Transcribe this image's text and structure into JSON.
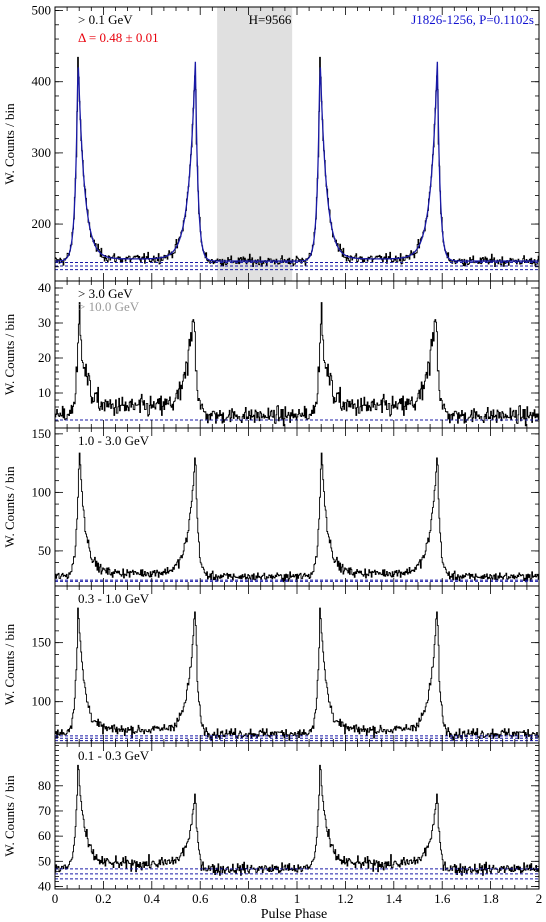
{
  "chart_data": {
    "type": "histogram",
    "x_axis": {
      "label": "Pulse Phase",
      "range": [
        0,
        2
      ],
      "ticks": [
        "0",
        "0.2",
        "0.4",
        "0.6",
        "0.8",
        "1",
        "1.2",
        "1.4",
        "1.6",
        "1.8",
        "2"
      ]
    },
    "colors": {
      "data": "#000000",
      "fit": "#1a1aa6",
      "background_line": "#1a1aa6",
      "offpulse_band": "#e0e0e0",
      "delta_text": "#e8000b",
      "pulsar_text": "#1010d0",
      "secondary_energy_text": "#999999"
    },
    "panels": [
      {
        "energy_label": "> 0.1 GeV",
        "extra_label": "Δ = 0.48 ± 0.01",
        "h_label": "H=9566",
        "pulsar_label": "J1826-1256, P=0.1102s",
        "ylabel": "W. Counts / bin",
        "ylim": [
          120,
          505
        ],
        "yticks": [
          200,
          300,
          400,
          500
        ],
        "offpulse_band": [
          0.67,
          0.98
        ],
        "background_levels": [
          136,
          141,
          146
        ],
        "baseline": 148,
        "peaks": [
          {
            "phase": 0.095,
            "height": 435
          },
          {
            "phase": 0.58,
            "height": 428
          }
        ],
        "bridge": 3,
        "noise": 5,
        "fit": true
      },
      {
        "energy_label": "> 3.0 GeV",
        "secondary_label": "> 10.0 GeV",
        "ylabel": "W. Counts / bin",
        "ylim": [
          0,
          42
        ],
        "yticks": [
          10,
          20,
          30,
          40
        ],
        "background_levels": [
          2.3
        ],
        "baseline": 3.5,
        "peaks": [
          {
            "phase": 0.1,
            "height": 32
          },
          {
            "phase": 0.575,
            "height": 35
          }
        ],
        "bridge": 2.5,
        "noise": 1.6,
        "fit": false
      },
      {
        "energy_label": "1.0 - 3.0 GeV",
        "ylabel": "W. Counts / bin",
        "ylim": [
          20,
          155
        ],
        "yticks": [
          50,
          100,
          150
        ],
        "background_levels": [
          24,
          25
        ],
        "baseline": 28,
        "peaks": [
          {
            "phase": 0.1,
            "height": 137
          },
          {
            "phase": 0.58,
            "height": 134
          }
        ],
        "bridge": 3,
        "noise": 2.5,
        "fit": false
      },
      {
        "energy_label": "0.3 - 1.0 GeV",
        "ylabel": "W. Counts / bin",
        "ylim": [
          65,
          198
        ],
        "yticks": [
          100,
          150
        ],
        "background_levels": [
          67,
          69,
          71
        ],
        "baseline": 73,
        "peaks": [
          {
            "phase": 0.095,
            "height": 180
          },
          {
            "phase": 0.58,
            "height": 180
          }
        ],
        "bridge": 3,
        "noise": 3,
        "fit": false
      },
      {
        "energy_label": "0.1 - 0.3 GeV",
        "ylabel": "W. Counts / bin",
        "ylim": [
          39,
          97
        ],
        "yticks": [
          40,
          50,
          60,
          70,
          80
        ],
        "background_levels": [
          43,
          45,
          47
        ],
        "baseline": 47,
        "peaks": [
          {
            "phase": 0.095,
            "height": 88
          },
          {
            "phase": 0.58,
            "height": 75
          }
        ],
        "bridge": 2,
        "noise": 1.6,
        "fit": false
      }
    ]
  }
}
